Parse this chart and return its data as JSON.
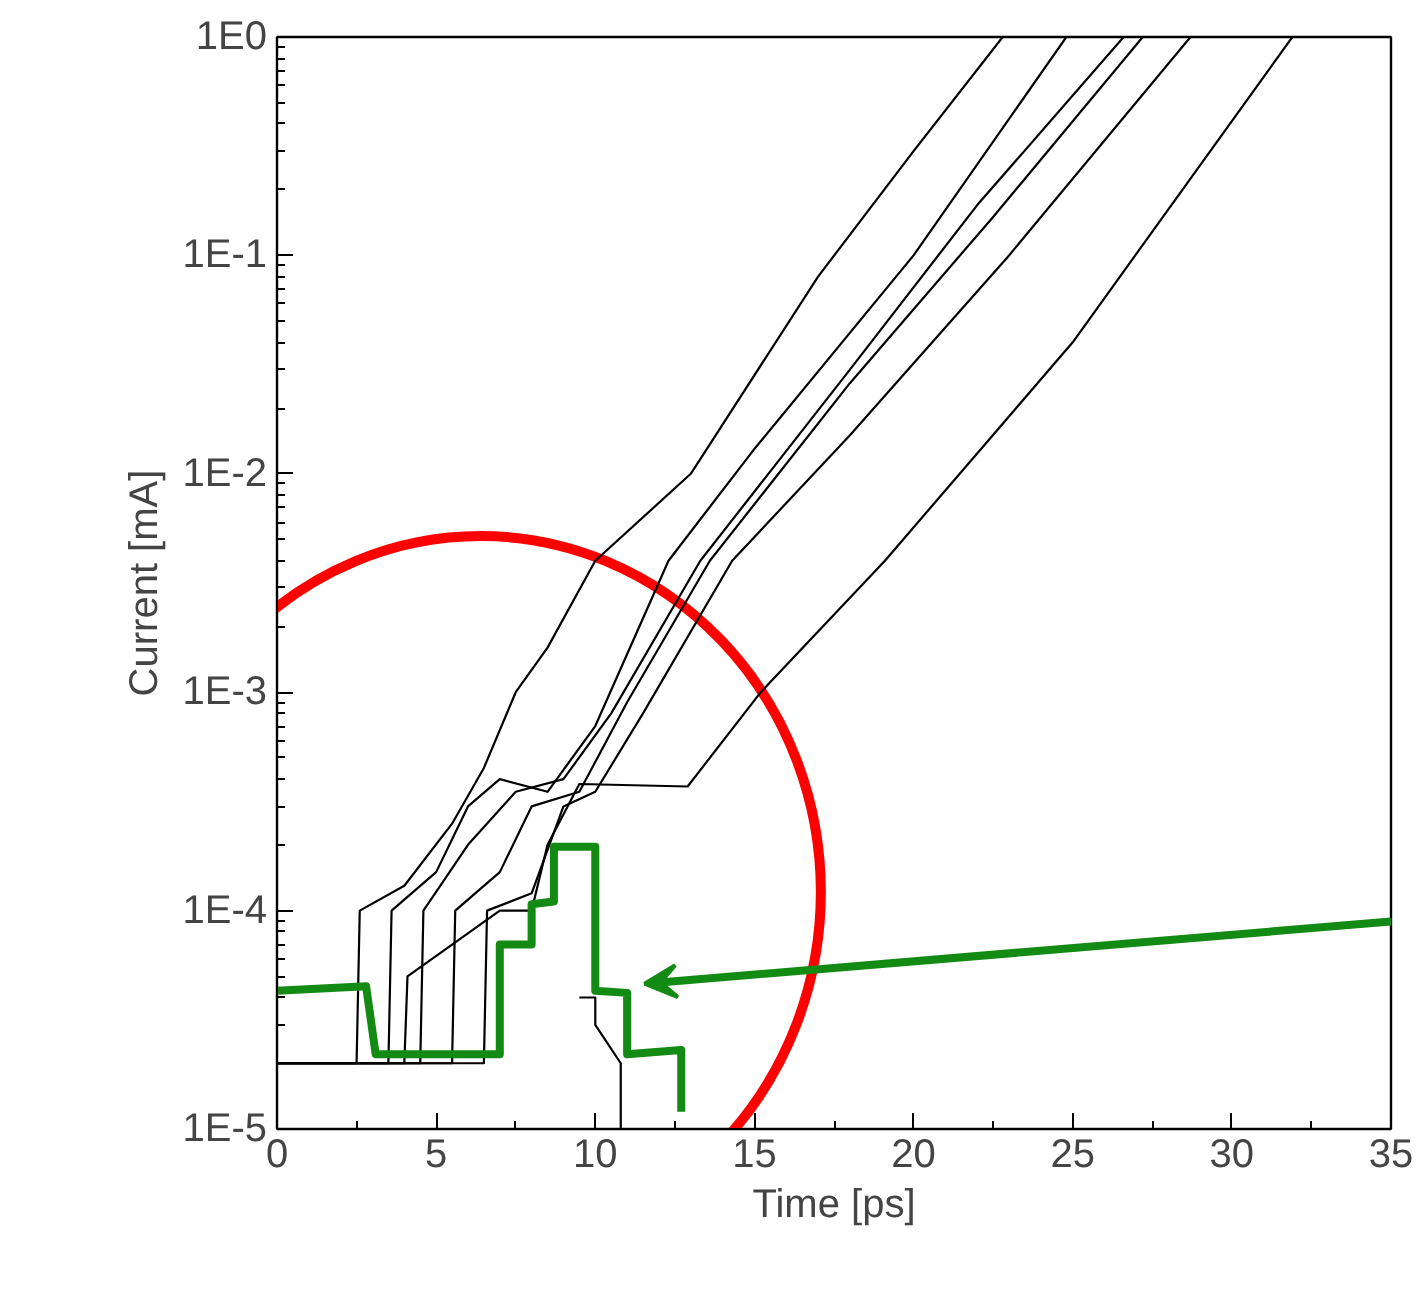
{
  "chart_data": {
    "type": "line",
    "xlabel": "Time [ps]",
    "ylabel": "Current [mA]",
    "log": "y",
    "grid": false,
    "xlim": [
      0,
      35
    ],
    "ylim": [
      1e-05,
      1
    ],
    "xticks": [
      0,
      5,
      10,
      15,
      20,
      25,
      30,
      35
    ],
    "yticks": [
      {
        "value": 1e-05,
        "label": "1E-5"
      },
      {
        "value": 0.0001,
        "label": "1E-4"
      },
      {
        "value": 0.001,
        "label": "1E-3"
      },
      {
        "value": 0.01,
        "label": "1E-2"
      },
      {
        "value": 0.1,
        "label": "1E-1"
      },
      {
        "value": 1,
        "label": "1E0"
      }
    ],
    "series": [
      {
        "color": "#000000",
        "x": [
          0,
          2.5,
          2.6,
          4,
          5.5,
          6.5,
          7.5,
          8.5,
          10,
          13,
          17,
          20,
          22.8
        ],
        "values": [
          2e-05,
          2e-05,
          0.0001,
          0.00013,
          0.00025,
          0.00045,
          0.001,
          0.0016,
          0.004,
          0.01,
          0.08,
          0.3,
          1
        ]
      },
      {
        "color": "#000000",
        "x": [
          0,
          3.5,
          3.6,
          5,
          6,
          7,
          8.5,
          10,
          12.3,
          15,
          20,
          24.8
        ],
        "values": [
          2e-05,
          2e-05,
          0.0001,
          0.00015,
          0.0003,
          0.0004,
          0.00035,
          0.0007,
          0.004,
          0.013,
          0.1,
          1
        ]
      },
      {
        "color": "#000000",
        "x": [
          0,
          4.5,
          4.6,
          6,
          7.5,
          9,
          10.5,
          13.3,
          18,
          22,
          26.6
        ],
        "values": [
          2e-05,
          2e-05,
          0.0001,
          0.0002,
          0.00035,
          0.0004,
          0.0008,
          0.004,
          0.03,
          0.17,
          1
        ]
      },
      {
        "color": "#000000",
        "x": [
          0,
          5.5,
          5.6,
          7,
          8,
          9.5,
          11,
          13.6,
          18,
          22.5,
          27.2
        ],
        "values": [
          2e-05,
          2e-05,
          0.0001,
          0.00015,
          0.0003,
          0.00035,
          0.0009,
          0.004,
          0.026,
          0.15,
          1
        ]
      },
      {
        "color": "#000000",
        "x": [
          0,
          6.5,
          6.6,
          8,
          9,
          10,
          11.5,
          14.3,
          18,
          23,
          28.7
        ],
        "values": [
          2e-05,
          2e-05,
          0.0001,
          0.00012,
          0.0003,
          0.00035,
          0.0008,
          0.004,
          0.015,
          0.1,
          1
        ]
      },
      {
        "color": "#000000",
        "x": [
          0,
          4,
          4.1,
          7,
          8,
          8.5,
          9.5,
          12.9,
          15.2,
          19.1,
          25,
          31.9
        ],
        "values": [
          2e-05,
          2e-05,
          5e-05,
          0.0001,
          0.0001,
          0.0002,
          0.00038,
          0.00037,
          0.001,
          0.004,
          0.04,
          1
        ]
      },
      {
        "color": "#000000",
        "x": [
          9.5,
          10,
          10,
          10.8,
          10.8
        ],
        "values": [
          4e-05,
          4e-05,
          3e-05,
          2e-05,
          1e-05
        ]
      },
      {
        "color": "#138a13",
        "x": [
          0,
          2.8,
          3.1,
          7,
          7,
          8,
          8,
          8.7,
          8.7,
          10,
          10,
          11,
          11,
          12.7,
          12.7
        ],
        "values": [
          4.3e-05,
          4.5e-05,
          2.2e-05,
          2.2e-05,
          7e-05,
          7e-05,
          0.000107,
          0.00011,
          0.000196,
          0.000196,
          4.3e-05,
          4.2e-05,
          2.2e-05,
          2.3e-05,
          1.2e-05
        ]
      }
    ]
  }
}
